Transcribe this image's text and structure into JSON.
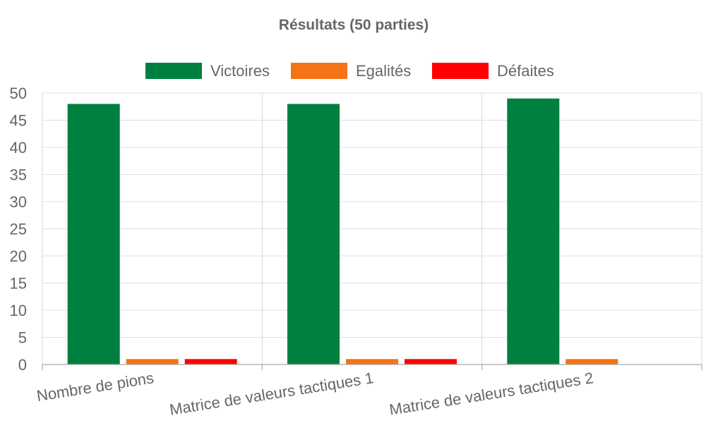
{
  "chart_data": {
    "type": "bar",
    "title": "Résultats (50 parties)",
    "categories": [
      "Nombre de pions",
      "Matrice de valeurs tactiques 1",
      "Matrice de valeurs tactiques 2"
    ],
    "series": [
      {
        "name": "Victoires",
        "color": "#008040",
        "values": [
          48,
          48,
          49
        ]
      },
      {
        "name": "Egalités",
        "color": "#f57215",
        "values": [
          1,
          1,
          1
        ]
      },
      {
        "name": "Défaites",
        "color": "#ff0000",
        "values": [
          1,
          1,
          0
        ]
      }
    ],
    "ylim": [
      0,
      50
    ],
    "yticks": [
      0,
      5,
      10,
      15,
      20,
      25,
      30,
      35,
      40,
      45,
      50
    ],
    "grid": true,
    "legend_position": "top"
  }
}
